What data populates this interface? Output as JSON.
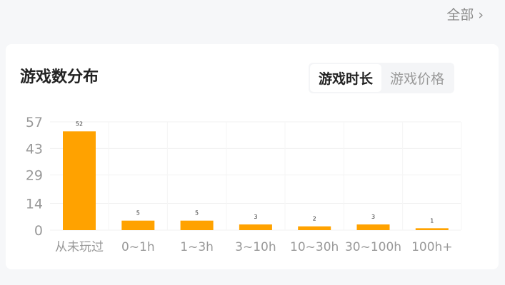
{
  "header": {
    "all_label": "全部 ›"
  },
  "card": {
    "title": "游戏数分布",
    "tabs": [
      {
        "label": "游戏时长",
        "active": true
      },
      {
        "label": "游戏价格",
        "active": false
      }
    ]
  },
  "chart_data": {
    "type": "bar",
    "categories": [
      "从未玩过",
      "0~1h",
      "1~3h",
      "3~10h",
      "10~30h",
      "30~100h",
      "100h+"
    ],
    "values": [
      52,
      5,
      5,
      3,
      2,
      3,
      1
    ],
    "yticks": [
      0,
      14,
      29,
      43,
      57
    ],
    "ylim": [
      0,
      57
    ],
    "grid": true,
    "bar_color": "#ffa200"
  }
}
